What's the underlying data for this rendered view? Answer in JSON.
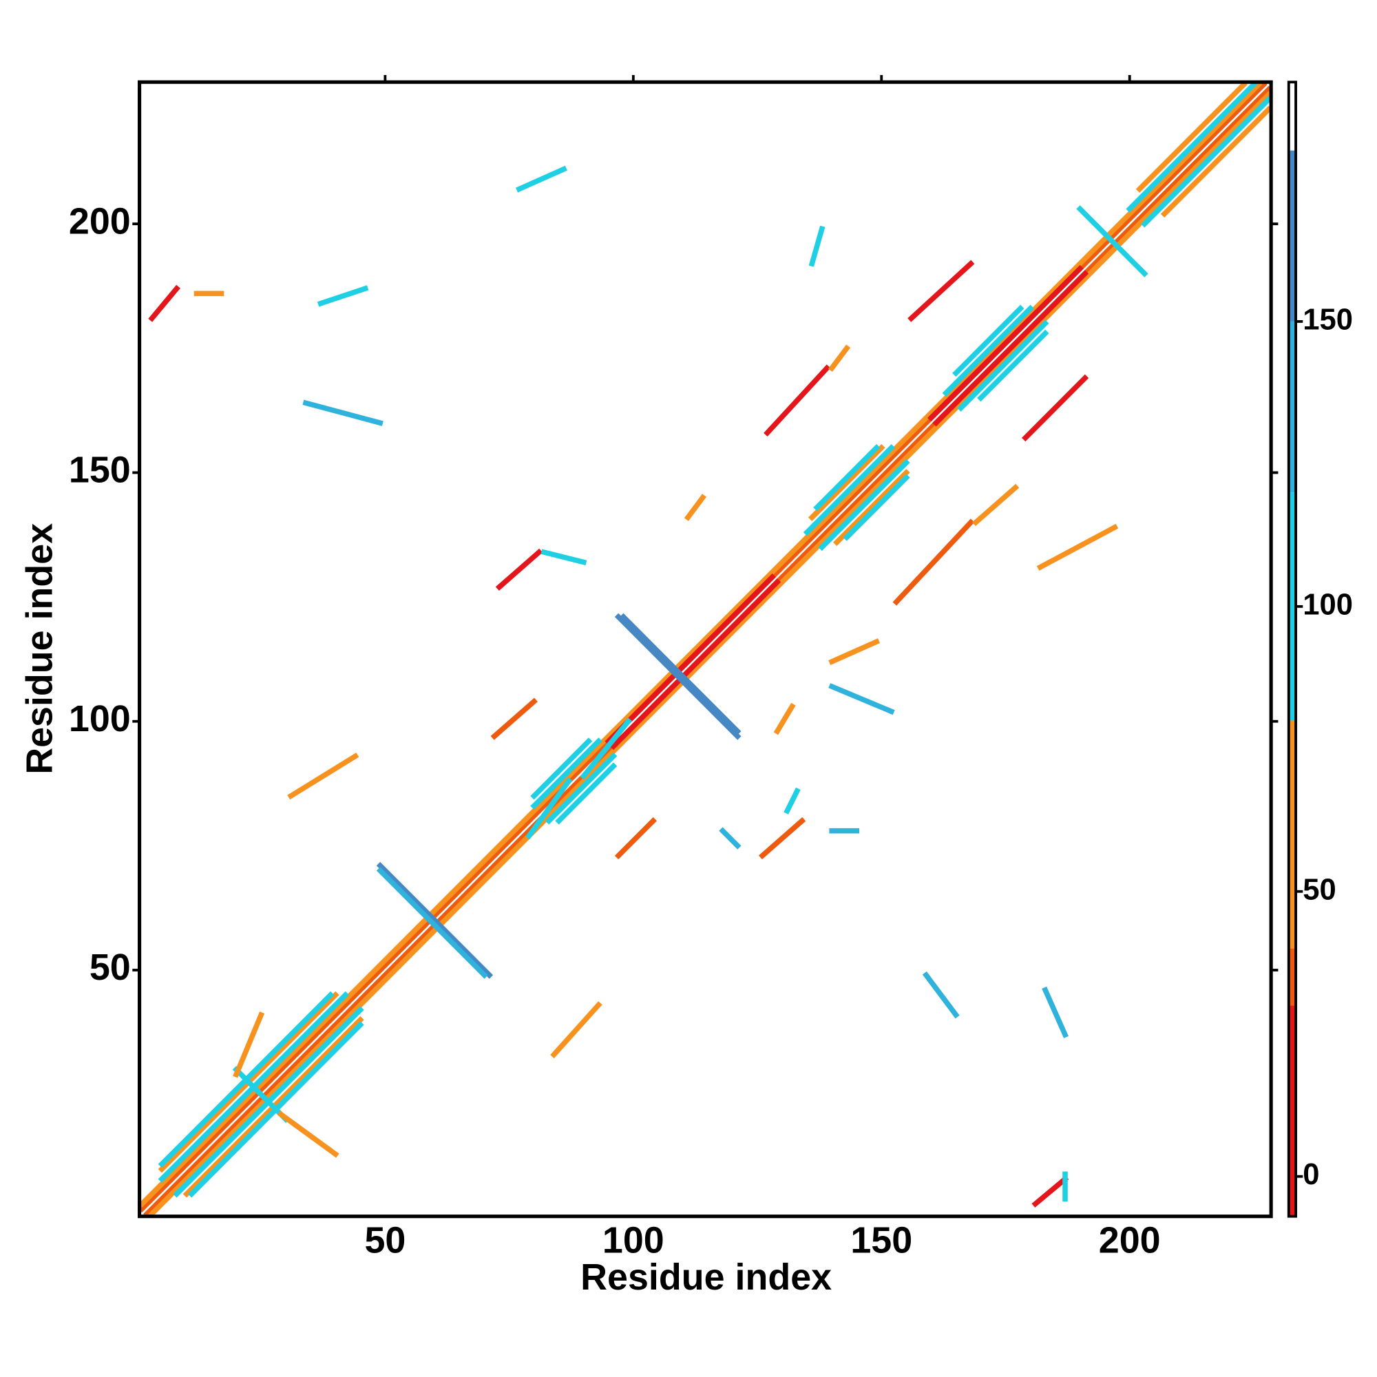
{
  "chart_data": {
    "type": "heatmap",
    "xlabel": "Residue index",
    "ylabel": "Residue index",
    "xlim": [
      0.5,
      228.5
    ],
    "ylim": [
      0.5,
      228.5
    ],
    "xticks": [
      50,
      100,
      150,
      200
    ],
    "yticks": [
      50,
      100,
      150,
      200
    ],
    "clim": [
      -7,
      192
    ],
    "cticks": [
      0,
      50,
      100,
      150
    ],
    "colorscale": {
      "bounds": [
        -7,
        30,
        40,
        80,
        120,
        150,
        180,
        192
      ],
      "colors": [
        "#e4161b",
        "#ee5a0e",
        "#f7921e",
        "#1fd0e4",
        "#2fb2dc",
        "#4688c4",
        "#ffffff"
      ]
    },
    "segments": [
      {
        "x": [
          1,
          227
        ],
        "y": [
          2,
          228
        ],
        "value": 30
      },
      {
        "x": [
          2,
          228
        ],
        "y": [
          1,
          227
        ],
        "value": 30
      },
      {
        "x": [
          1,
          226
        ],
        "y": [
          3,
          228
        ],
        "value": 60
      },
      {
        "x": [
          3,
          228
        ],
        "y": [
          1,
          226
        ],
        "value": 60
      },
      {
        "x": [
          95,
          128
        ],
        "y": [
          96,
          129
        ],
        "value": 10
      },
      {
        "x": [
          96,
          129
        ],
        "y": [
          95,
          128
        ],
        "value": 10
      },
      {
        "x": [
          160,
          190
        ],
        "y": [
          161,
          191
        ],
        "value": 10
      },
      {
        "x": [
          161,
          191
        ],
        "y": [
          160,
          190
        ],
        "value": 10
      },
      {
        "x": [
          5,
          42
        ],
        "y": [
          8,
          45
        ],
        "value": 100
      },
      {
        "x": [
          8,
          45
        ],
        "y": [
          5,
          42
        ],
        "value": 100
      },
      {
        "x": [
          5,
          40
        ],
        "y": [
          10,
          45
        ],
        "value": 60
      },
      {
        "x": [
          10,
          45
        ],
        "y": [
          5,
          40
        ],
        "value": 60
      },
      {
        "x": [
          5,
          39
        ],
        "y": [
          11,
          45
        ],
        "value": 100
      },
      {
        "x": [
          11,
          45
        ],
        "y": [
          5,
          39
        ],
        "value": 100
      },
      {
        "x": [
          80,
          93
        ],
        "y": [
          83,
          96
        ],
        "value": 100
      },
      {
        "x": [
          83,
          96
        ],
        "y": [
          80,
          93
        ],
        "value": 100
      },
      {
        "x": [
          80,
          91
        ],
        "y": [
          85,
          96
        ],
        "value": 100
      },
      {
        "x": [
          85,
          96
        ],
        "y": [
          80,
          91
        ],
        "value": 100
      },
      {
        "x": [
          135,
          152
        ],
        "y": [
          138,
          155
        ],
        "value": 100
      },
      {
        "x": [
          138,
          155
        ],
        "y": [
          135,
          152
        ],
        "value": 100
      },
      {
        "x": [
          136,
          150
        ],
        "y": [
          141,
          155
        ],
        "value": 60
      },
      {
        "x": [
          141,
          155
        ],
        "y": [
          136,
          150
        ],
        "value": 60
      },
      {
        "x": [
          137,
          149
        ],
        "y": [
          143,
          155
        ],
        "value": 100
      },
      {
        "x": [
          143,
          155
        ],
        "y": [
          137,
          149
        ],
        "value": 100
      },
      {
        "x": [
          163,
          180
        ],
        "y": [
          166,
          183
        ],
        "value": 100
      },
      {
        "x": [
          166,
          183
        ],
        "y": [
          163,
          180
        ],
        "value": 100
      },
      {
        "x": [
          165,
          178
        ],
        "y": [
          170,
          183
        ],
        "value": 100
      },
      {
        "x": [
          170,
          183
        ],
        "y": [
          165,
          178
        ],
        "value": 100
      },
      {
        "x": [
          200,
          225
        ],
        "y": [
          203,
          228
        ],
        "value": 100
      },
      {
        "x": [
          203,
          228
        ],
        "y": [
          200,
          225
        ],
        "value": 100
      },
      {
        "x": [
          202,
          223
        ],
        "y": [
          207,
          228
        ],
        "value": 60
      },
      {
        "x": [
          207,
          228
        ],
        "y": [
          202,
          223
        ],
        "value": 60
      },
      {
        "x": [
          49,
          71
        ],
        "y": [
          71,
          49
        ],
        "value": 160
      },
      {
        "x": [
          49,
          70
        ],
        "y": [
          70,
          49
        ],
        "value": 130
      },
      {
        "x": [
          97,
          121
        ],
        "y": [
          121,
          97
        ],
        "value": 165
      },
      {
        "x": [
          98,
          121
        ],
        "y": [
          121,
          98
        ],
        "value": 150
      },
      {
        "x": [
          190,
          203
        ],
        "y": [
          203,
          190
        ],
        "value": 100
      },
      {
        "x": [
          20,
          30
        ],
        "y": [
          30,
          20
        ],
        "value": 100
      },
      {
        "x": [
          3,
          8
        ],
        "y": [
          181,
          187
        ],
        "value": 20
      },
      {
        "x": [
          12,
          17
        ],
        "y": [
          186,
          186
        ],
        "value": 50
      },
      {
        "x": [
          73,
          81
        ],
        "y": [
          127,
          134
        ],
        "value": 20
      },
      {
        "x": [
          82,
          90
        ],
        "y": [
          134,
          132
        ],
        "value": 100
      },
      {
        "x": [
          72,
          80
        ],
        "y": [
          97,
          104
        ],
        "value": 30
      },
      {
        "x": [
          97,
          104
        ],
        "y": [
          73,
          80
        ],
        "value": 30
      },
      {
        "x": [
          126,
          134
        ],
        "y": [
          73,
          80
        ],
        "value": 30
      },
      {
        "x": [
          131,
          133
        ],
        "y": [
          82,
          86
        ],
        "value": 100
      },
      {
        "x": [
          156,
          168
        ],
        "y": [
          181,
          192
        ],
        "value": 25
      },
      {
        "x": [
          127,
          139
        ],
        "y": [
          158,
          171
        ],
        "value": 25
      },
      {
        "x": [
          140,
          143
        ],
        "y": [
          171,
          175
        ],
        "value": 50
      },
      {
        "x": [
          179,
          191
        ],
        "y": [
          157,
          169
        ],
        "value": 25
      },
      {
        "x": [
          153,
          168
        ],
        "y": [
          124,
          140
        ],
        "value": 30
      },
      {
        "x": [
          169,
          177
        ],
        "y": [
          140,
          147
        ],
        "value": 60
      },
      {
        "x": [
          84,
          93
        ],
        "y": [
          33,
          43
        ],
        "value": 55
      },
      {
        "x": [
          31,
          44
        ],
        "y": [
          85,
          93
        ],
        "value": 55
      },
      {
        "x": [
          181,
          187
        ],
        "y": [
          3,
          8
        ],
        "value": 20
      },
      {
        "x": [
          187,
          187
        ],
        "y": [
          4,
          9
        ],
        "value": 100
      },
      {
        "x": [
          182,
          197
        ],
        "y": [
          131,
          139
        ],
        "value": 55
      },
      {
        "x": [
          111,
          114
        ],
        "y": [
          141,
          145
        ],
        "value": 50
      },
      {
        "x": [
          140,
          149
        ],
        "y": [
          112,
          116
        ],
        "value": 50
      },
      {
        "x": [
          129,
          132
        ],
        "y": [
          98,
          103
        ],
        "value": 50
      },
      {
        "x": [
          77,
          86
        ],
        "y": [
          207,
          211
        ],
        "value": 110
      },
      {
        "x": [
          37,
          46
        ],
        "y": [
          184,
          187
        ],
        "value": 110
      },
      {
        "x": [
          34,
          49
        ],
        "y": [
          164,
          160
        ],
        "value": 130
      },
      {
        "x": [
          136,
          138
        ],
        "y": [
          192,
          199
        ],
        "value": 110
      },
      {
        "x": [
          140,
          152
        ],
        "y": [
          107,
          102
        ],
        "value": 130
      },
      {
        "x": [
          159,
          165
        ],
        "y": [
          49,
          41
        ],
        "value": 130
      },
      {
        "x": [
          183,
          187
        ],
        "y": [
          46,
          37
        ],
        "value": 130
      },
      {
        "x": [
          118,
          121
        ],
        "y": [
          78,
          75
        ],
        "value": 140
      },
      {
        "x": [
          140,
          145
        ],
        "y": [
          78,
          78
        ],
        "value": 140
      },
      {
        "x": [
          79,
          87
        ],
        "y": [
          77,
          88
        ],
        "value": 100
      },
      {
        "x": [
          90,
          99
        ],
        "y": [
          89,
          100
        ],
        "value": 100
      },
      {
        "x": [
          20,
          25
        ],
        "y": [
          29,
          41
        ],
        "value": 55
      },
      {
        "x": [
          29,
          40
        ],
        "y": [
          21,
          13
        ],
        "value": 55
      }
    ]
  }
}
